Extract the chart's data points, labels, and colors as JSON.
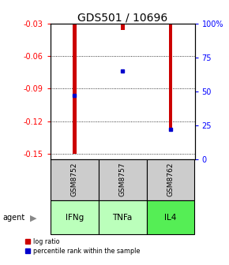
{
  "title": "GDS501 / 10696",
  "samples": [
    "GSM8752",
    "GSM8757",
    "GSM8762"
  ],
  "agents": [
    "IFNg",
    "TNFa",
    "IL4"
  ],
  "log_ratios": [
    -0.15,
    -0.036,
    -0.13
  ],
  "percentile_ranks": [
    0.47,
    0.65,
    0.22
  ],
  "ylim_left": [
    -0.155,
    -0.03
  ],
  "ylim_right": [
    0.0,
    1.0
  ],
  "yticks_left": [
    -0.15,
    -0.12,
    -0.09,
    -0.06,
    -0.03
  ],
  "yticks_right": [
    0,
    25,
    50,
    75,
    100
  ],
  "ytick_labels_left": [
    "-0.15",
    "-0.12",
    "-0.09",
    "-0.06",
    "-0.03"
  ],
  "ytick_labels_right": [
    "0",
    "25",
    "50",
    "75",
    "100%"
  ],
  "bar_color": "#cc0000",
  "percentile_color": "#0000cc",
  "agent_colors": [
    "#bbffbb",
    "#bbffbb",
    "#55ee55"
  ],
  "sample_box_color": "#cccccc",
  "title_fontsize": 10,
  "bar_width": 0.08
}
